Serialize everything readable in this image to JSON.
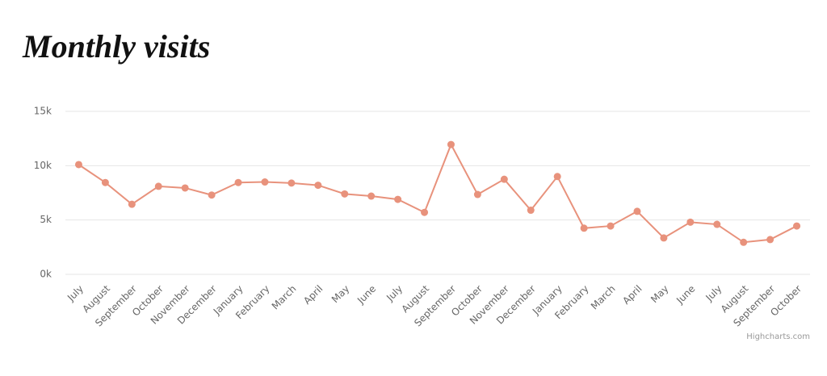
{
  "chart_data": {
    "type": "line",
    "title": "Monthly visits",
    "categories": [
      "July",
      "August",
      "September",
      "October",
      "November",
      "December",
      "January",
      "February",
      "March",
      "April",
      "May",
      "June",
      "July",
      "August",
      "September",
      "October",
      "November",
      "December",
      "January",
      "February",
      "March",
      "April",
      "May",
      "June",
      "July",
      "August",
      "September",
      "October"
    ],
    "series": [
      {
        "name": "Visits",
        "color": "#e8927c",
        "values": [
          10100,
          8450,
          6450,
          8100,
          7950,
          7300,
          8450,
          8500,
          8400,
          8200,
          7400,
          7200,
          6900,
          5700,
          11950,
          7350,
          8750,
          5900,
          9000,
          4250,
          4450,
          5800,
          3350,
          4800,
          4600,
          2950,
          3200,
          4450
        ]
      }
    ],
    "ylim": [
      0,
      15000
    ],
    "yticks": [
      {
        "value": 0,
        "label": "0k"
      },
      {
        "value": 5000,
        "label": "5k"
      },
      {
        "value": 10000,
        "label": "10k"
      },
      {
        "value": 15000,
        "label": "15k"
      }
    ],
    "grid": true,
    "credit": "Highcharts.com"
  }
}
